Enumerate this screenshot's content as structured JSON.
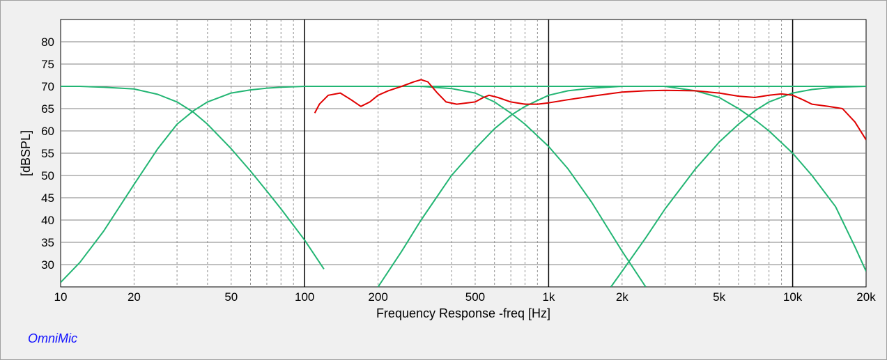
{
  "brand": "OmniMic",
  "chart_data": {
    "type": "line",
    "title": "",
    "xlabel": "Frequency Response -freq [Hz]",
    "ylabel": "[dBSPL]",
    "x_scale": "log",
    "xlim": [
      10,
      20000
    ],
    "ylim": [
      25,
      85
    ],
    "grid": true,
    "x_ticks": [
      {
        "value": 10,
        "label": "10"
      },
      {
        "value": 20,
        "label": "20"
      },
      {
        "value": 50,
        "label": "50"
      },
      {
        "value": 100,
        "label": "100"
      },
      {
        "value": 200,
        "label": "200"
      },
      {
        "value": 500,
        "label": "500"
      },
      {
        "value": 1000,
        "label": "1k"
      },
      {
        "value": 2000,
        "label": "2k"
      },
      {
        "value": 5000,
        "label": "5k"
      },
      {
        "value": 10000,
        "label": "10k"
      },
      {
        "value": 20000,
        "label": "20k"
      }
    ],
    "y_ticks": [
      {
        "value": 30,
        "label": "30"
      },
      {
        "value": 35,
        "label": "35"
      },
      {
        "value": 40,
        "label": "40"
      },
      {
        "value": 45,
        "label": "45"
      },
      {
        "value": 50,
        "label": "50"
      },
      {
        "value": 55,
        "label": "55"
      },
      {
        "value": 60,
        "label": "60"
      },
      {
        "value": 65,
        "label": "65"
      },
      {
        "value": 70,
        "label": "70"
      },
      {
        "value": 75,
        "label": "75"
      },
      {
        "value": 80,
        "label": "80"
      }
    ],
    "colors": {
      "target": "#22b573",
      "measured": "#e00000",
      "grid_minor": "#909090",
      "grid_major": "#000000"
    },
    "series": [
      {
        "color": "#22b573",
        "x": [
          10,
          12,
          15,
          20,
          25,
          30,
          35,
          40,
          50,
          60,
          70,
          80,
          100,
          120
        ],
        "y": [
          70,
          70,
          69.8,
          69.4,
          68.2,
          66.5,
          64.2,
          61.5,
          56,
          51,
          46.5,
          42.5,
          35.5,
          29
        ]
      },
      {
        "color": "#22b573",
        "x": [
          10,
          12,
          15,
          20,
          25,
          30,
          35,
          40,
          50,
          60,
          70,
          80,
          100,
          120,
          150,
          200,
          300,
          500,
          1000,
          2000
        ],
        "y": [
          26,
          30.5,
          37.5,
          48,
          56,
          61.5,
          64.5,
          66.5,
          68.5,
          69.2,
          69.6,
          69.8,
          70,
          70,
          70,
          70,
          70,
          70,
          70,
          70
        ]
      },
      {
        "color": "#22b573",
        "x": [
          100,
          150,
          200,
          250,
          300,
          400,
          500,
          600,
          700,
          800,
          1000,
          1200,
          1500,
          2000,
          2500
        ],
        "y": [
          70,
          70,
          70,
          70,
          70,
          69.5,
          68.5,
          66.5,
          64,
          61.5,
          56.5,
          51.5,
          44,
          33,
          25
        ]
      },
      {
        "color": "#22b573",
        "x": [
          200,
          250,
          300,
          400,
          500,
          600,
          700,
          800,
          1000,
          1200,
          1500,
          2000,
          3000,
          5000,
          10000,
          20000
        ],
        "y": [
          25,
          33,
          40,
          50,
          56,
          60.5,
          63.5,
          65.5,
          68,
          69,
          69.6,
          70,
          70,
          70,
          70,
          70
        ]
      },
      {
        "color": "#22b573",
        "x": [
          1000,
          2000,
          3000,
          4000,
          5000,
          6000,
          7000,
          8000,
          10000,
          12000,
          15000,
          18000,
          20000
        ],
        "y": [
          70,
          70,
          70,
          69,
          67.5,
          65,
          62.5,
          60,
          55,
          50,
          43,
          34,
          28.5
        ]
      },
      {
        "color": "#22b573",
        "x": [
          1800,
          2000,
          2500,
          3000,
          4000,
          5000,
          6000,
          7000,
          8000,
          10000,
          12000,
          15000,
          20000
        ],
        "y": [
          25,
          28.5,
          36,
          42.5,
          51.5,
          57.5,
          61.5,
          64.5,
          66.5,
          68.5,
          69.3,
          69.8,
          70
        ]
      },
      {
        "color": "#e00000",
        "x": [
          110,
          115,
          125,
          140,
          155,
          170,
          185,
          200,
          220,
          250,
          280,
          300,
          320,
          350,
          380,
          420,
          500,
          540,
          570,
          620,
          700,
          800,
          900,
          1000,
          1200,
          1500,
          2000,
          2500,
          3000,
          4000,
          5000,
          6000,
          7000,
          8000,
          9000,
          10000,
          11000,
          12000,
          14000,
          16000,
          18000,
          20000
        ],
        "y": [
          64,
          66,
          68,
          68.5,
          67,
          65.5,
          66.5,
          68,
          69,
          70,
          71,
          71.5,
          71,
          68.5,
          66.5,
          66,
          66.5,
          67.5,
          68,
          67.5,
          66.5,
          66,
          66,
          66.3,
          67,
          67.8,
          68.7,
          69,
          69.1,
          69,
          68.5,
          67.8,
          67.5,
          68,
          68.3,
          68,
          67,
          66,
          65.5,
          65,
          62,
          58
        ]
      }
    ]
  }
}
